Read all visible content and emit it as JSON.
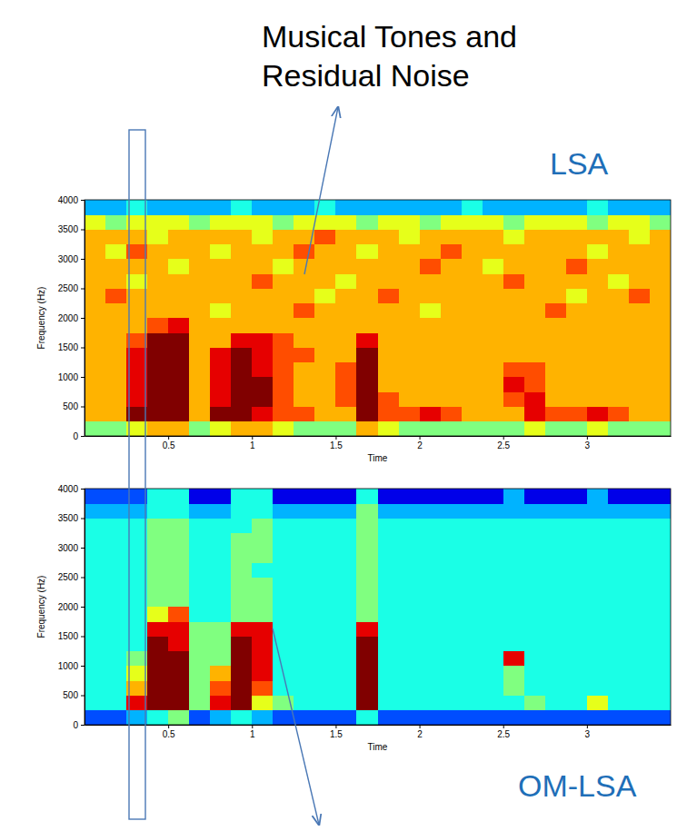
{
  "annotations": [
    "Musical Tones and Residual Noise"
  ],
  "chart_data": [
    {
      "type": "heatmap",
      "title": "LSA",
      "x_label": "Time",
      "y_label": "Frequency (Hz)",
      "xlim": [
        0,
        3.5
      ],
      "ylim": [
        0,
        4000
      ],
      "xticks": [
        0.5,
        1,
        1.5,
        2,
        2.5,
        3
      ],
      "yticks": [
        0,
        500,
        1000,
        1500,
        2000,
        2500,
        3000,
        3500,
        4000
      ],
      "zlim": [
        0,
        10
      ],
      "x": [
        0.0625,
        0.1875,
        0.3125,
        0.4375,
        0.5625,
        0.6875,
        0.8125,
        0.9375,
        1.0625,
        1.1875,
        1.3125,
        1.4375,
        1.5625,
        1.6875,
        1.8125,
        1.9375,
        2.0625,
        2.1875,
        2.3125,
        2.4375,
        2.5625,
        2.6875,
        2.8125,
        2.9375,
        3.0625,
        3.1875,
        3.3125,
        3.4375
      ],
      "y": [
        125,
        375,
        625,
        875,
        1125,
        1375,
        1625,
        1875,
        2125,
        2375,
        2625,
        2875,
        3125,
        3375,
        3625,
        3875
      ],
      "z": [
        [
          5,
          5,
          6,
          7,
          7,
          5,
          6,
          7,
          7,
          6,
          5,
          5,
          5,
          7,
          6,
          5,
          5,
          5,
          5,
          5,
          5,
          6,
          5,
          5,
          6,
          5,
          5,
          5
        ],
        [
          7,
          7,
          10,
          10,
          10,
          7,
          10,
          10,
          9,
          8,
          8,
          7,
          7,
          10,
          8,
          8,
          9,
          8,
          7,
          7,
          7,
          9,
          8,
          8,
          9,
          8,
          7,
          7
        ],
        [
          7,
          7,
          9,
          10,
          10,
          7,
          9,
          10,
          10,
          8,
          7,
          7,
          8,
          10,
          8,
          7,
          7,
          7,
          7,
          7,
          8,
          9,
          7,
          7,
          7,
          7,
          7,
          7
        ],
        [
          7,
          7,
          9,
          10,
          10,
          7,
          9,
          10,
          10,
          8,
          7,
          7,
          8,
          10,
          7,
          7,
          7,
          7,
          7,
          7,
          9,
          8,
          7,
          7,
          7,
          7,
          7,
          7
        ],
        [
          7,
          7,
          9,
          10,
          10,
          7,
          9,
          10,
          9,
          8,
          7,
          7,
          8,
          10,
          7,
          7,
          7,
          7,
          7,
          7,
          8,
          8,
          7,
          7,
          7,
          7,
          7,
          7
        ],
        [
          7,
          7,
          9,
          10,
          10,
          7,
          9,
          10,
          9,
          8,
          8,
          7,
          7,
          10,
          7,
          7,
          7,
          7,
          7,
          7,
          7,
          7,
          7,
          7,
          7,
          7,
          7,
          7
        ],
        [
          7,
          7,
          8,
          10,
          10,
          7,
          7,
          9,
          9,
          8,
          7,
          7,
          7,
          9,
          7,
          7,
          7,
          7,
          7,
          7,
          7,
          7,
          7,
          7,
          7,
          7,
          7,
          7
        ],
        [
          7,
          7,
          7,
          8,
          9,
          7,
          7,
          7,
          7,
          7,
          7,
          7,
          7,
          7,
          7,
          7,
          7,
          7,
          7,
          7,
          7,
          7,
          7,
          7,
          7,
          7,
          7,
          7
        ],
        [
          7,
          7,
          7,
          7,
          7,
          7,
          6,
          7,
          7,
          7,
          8,
          7,
          7,
          7,
          7,
          7,
          6,
          7,
          7,
          7,
          7,
          7,
          8,
          7,
          7,
          7,
          7,
          7
        ],
        [
          7,
          8,
          7,
          7,
          7,
          7,
          7,
          7,
          7,
          7,
          7,
          6,
          7,
          7,
          8,
          7,
          7,
          7,
          7,
          7,
          7,
          7,
          7,
          6,
          7,
          7,
          8,
          7
        ],
        [
          7,
          7,
          6,
          7,
          7,
          7,
          7,
          7,
          8,
          7,
          7,
          7,
          6,
          7,
          7,
          7,
          7,
          7,
          7,
          7,
          8,
          7,
          7,
          7,
          7,
          6,
          7,
          7
        ],
        [
          7,
          7,
          7,
          7,
          6,
          7,
          7,
          7,
          7,
          6,
          7,
          7,
          7,
          7,
          7,
          7,
          8,
          7,
          7,
          6,
          7,
          7,
          7,
          8,
          7,
          7,
          7,
          7
        ],
        [
          7,
          6,
          8,
          7,
          7,
          7,
          6,
          7,
          7,
          7,
          8,
          7,
          7,
          6,
          7,
          7,
          7,
          8,
          7,
          7,
          7,
          7,
          7,
          7,
          6,
          7,
          7,
          7
        ],
        [
          7,
          7,
          7,
          6,
          7,
          7,
          7,
          7,
          6,
          7,
          7,
          8,
          7,
          7,
          7,
          6,
          7,
          7,
          7,
          7,
          6,
          7,
          7,
          7,
          7,
          7,
          6,
          7
        ],
        [
          6,
          5,
          6,
          6,
          6,
          5,
          6,
          6,
          6,
          5,
          6,
          6,
          6,
          5,
          6,
          6,
          5,
          6,
          6,
          6,
          5,
          6,
          6,
          6,
          5,
          6,
          6,
          5
        ],
        [
          3,
          3,
          4,
          3,
          3,
          3,
          3,
          4,
          3,
          3,
          3,
          4,
          3,
          3,
          3,
          3,
          3,
          3,
          4,
          3,
          3,
          3,
          3,
          3,
          4,
          3,
          3,
          3
        ]
      ]
    },
    {
      "type": "heatmap",
      "title": "OM-LSA",
      "x_label": "Time",
      "y_label": "Frequency (Hz)",
      "xlim": [
        0,
        3.5
      ],
      "ylim": [
        0,
        4000
      ],
      "xticks": [
        0.5,
        1,
        1.5,
        2,
        2.5,
        3
      ],
      "yticks": [
        0,
        500,
        1000,
        1500,
        2000,
        2500,
        3000,
        3500,
        4000
      ],
      "zlim": [
        0,
        10
      ],
      "x": [
        0.0625,
        0.1875,
        0.3125,
        0.4375,
        0.5625,
        0.6875,
        0.8125,
        0.9375,
        1.0625,
        1.1875,
        1.3125,
        1.4375,
        1.5625,
        1.6875,
        1.8125,
        1.9375,
        2.0625,
        2.1875,
        2.3125,
        2.4375,
        2.5625,
        2.6875,
        2.8125,
        2.9375,
        3.0625,
        3.1875,
        3.3125,
        3.4375
      ],
      "y": [
        125,
        375,
        625,
        875,
        1125,
        1375,
        1625,
        1875,
        2125,
        2375,
        2625,
        2875,
        3125,
        3375,
        3625,
        3875
      ],
      "z": [
        [
          2,
          2,
          3,
          4,
          5,
          2,
          3,
          4,
          3,
          2,
          2,
          2,
          2,
          4,
          2,
          2,
          2,
          2,
          2,
          2,
          2,
          2,
          2,
          2,
          2,
          2,
          2,
          2
        ],
        [
          4,
          4,
          9,
          10,
          10,
          5,
          9,
          10,
          6,
          5,
          4,
          4,
          4,
          10,
          4,
          4,
          4,
          4,
          4,
          4,
          4,
          5,
          4,
          4,
          6,
          4,
          4,
          4
        ],
        [
          4,
          4,
          7,
          10,
          10,
          5,
          8,
          10,
          8,
          4,
          4,
          4,
          4,
          10,
          4,
          4,
          4,
          4,
          4,
          4,
          5,
          4,
          4,
          4,
          4,
          4,
          4,
          4
        ],
        [
          4,
          4,
          6,
          10,
          10,
          5,
          7,
          10,
          9,
          4,
          4,
          4,
          4,
          10,
          4,
          4,
          4,
          4,
          4,
          4,
          5,
          4,
          4,
          4,
          4,
          4,
          4,
          4
        ],
        [
          4,
          4,
          5,
          10,
          10,
          5,
          5,
          10,
          9,
          4,
          4,
          4,
          4,
          10,
          4,
          4,
          4,
          4,
          4,
          4,
          9,
          4,
          4,
          4,
          4,
          4,
          4,
          4
        ],
        [
          4,
          4,
          4,
          10,
          9,
          5,
          5,
          10,
          9,
          4,
          4,
          4,
          4,
          10,
          4,
          4,
          4,
          4,
          4,
          4,
          4,
          4,
          4,
          4,
          4,
          4,
          4,
          4
        ],
        [
          4,
          4,
          4,
          9,
          9,
          5,
          5,
          9,
          9,
          4,
          4,
          4,
          4,
          9,
          4,
          4,
          4,
          4,
          4,
          4,
          4,
          4,
          4,
          4,
          4,
          4,
          4,
          4
        ],
        [
          4,
          4,
          4,
          6,
          8,
          4,
          4,
          5,
          5,
          4,
          4,
          4,
          4,
          5,
          4,
          4,
          4,
          4,
          4,
          4,
          4,
          4,
          4,
          4,
          4,
          4,
          4,
          4
        ],
        [
          4,
          4,
          4,
          5,
          5,
          4,
          4,
          5,
          5,
          4,
          4,
          4,
          4,
          5,
          4,
          4,
          4,
          4,
          4,
          4,
          4,
          4,
          4,
          4,
          4,
          4,
          4,
          4
        ],
        [
          4,
          4,
          4,
          5,
          5,
          4,
          4,
          5,
          5,
          4,
          4,
          4,
          4,
          5,
          4,
          4,
          4,
          4,
          4,
          4,
          4,
          4,
          4,
          4,
          4,
          4,
          4,
          4
        ],
        [
          4,
          4,
          4,
          5,
          5,
          4,
          4,
          5,
          4,
          4,
          4,
          4,
          4,
          5,
          4,
          4,
          4,
          4,
          4,
          4,
          4,
          4,
          4,
          4,
          4,
          4,
          4,
          4
        ],
        [
          4,
          4,
          4,
          5,
          5,
          4,
          4,
          5,
          5,
          4,
          4,
          4,
          4,
          5,
          4,
          4,
          4,
          4,
          4,
          4,
          4,
          4,
          4,
          4,
          4,
          4,
          4,
          4
        ],
        [
          4,
          4,
          4,
          5,
          5,
          4,
          4,
          5,
          5,
          4,
          4,
          4,
          4,
          5,
          4,
          4,
          4,
          4,
          4,
          4,
          4,
          4,
          4,
          4,
          4,
          4,
          4,
          4
        ],
        [
          4,
          4,
          4,
          5,
          5,
          4,
          4,
          4,
          5,
          4,
          4,
          4,
          4,
          5,
          4,
          4,
          4,
          4,
          4,
          4,
          4,
          4,
          4,
          4,
          4,
          4,
          4,
          4
        ],
        [
          3,
          3,
          3,
          4,
          4,
          3,
          3,
          4,
          4,
          3,
          3,
          3,
          3,
          5,
          3,
          3,
          3,
          3,
          3,
          3,
          3,
          3,
          3,
          3,
          3,
          3,
          3,
          3
        ],
        [
          2,
          2,
          2,
          4,
          4,
          1,
          1,
          4,
          4,
          1,
          1,
          1,
          1,
          4,
          1,
          1,
          1,
          1,
          1,
          1,
          3,
          1,
          1,
          1,
          3,
          1,
          1,
          1
        ]
      ]
    }
  ]
}
